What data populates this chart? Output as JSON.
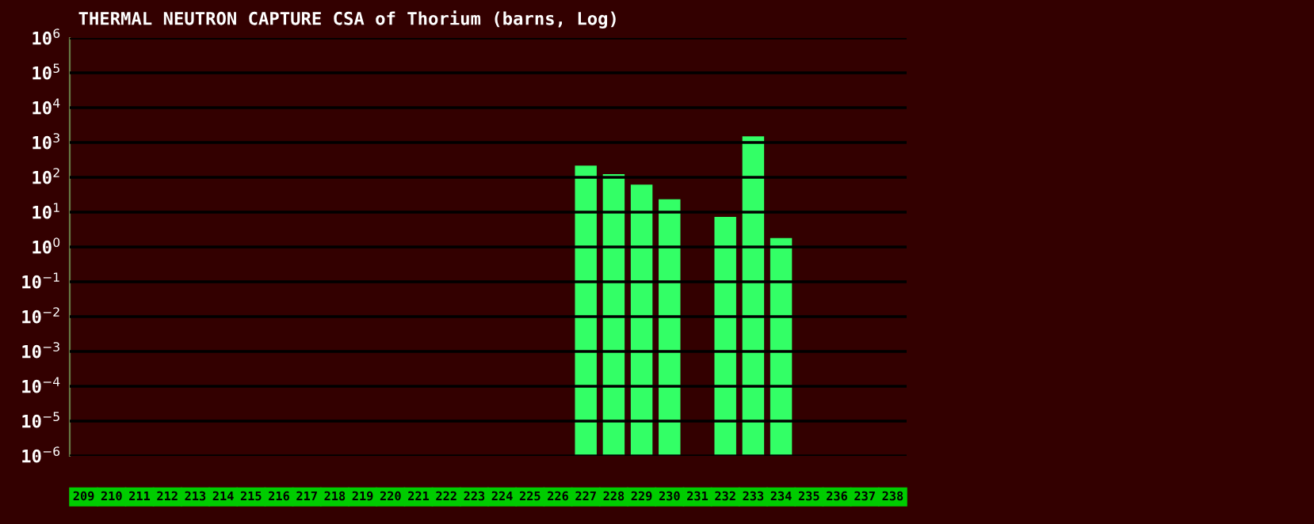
{
  "chart_data": {
    "type": "bar",
    "title": "THERMAL NEUTRON CAPTURE CSA of Thorium (barns, Log)",
    "categories": [
      "209",
      "210",
      "211",
      "212",
      "213",
      "214",
      "215",
      "216",
      "217",
      "218",
      "219",
      "220",
      "221",
      "222",
      "223",
      "224",
      "225",
      "226",
      "227",
      "228",
      "229",
      "230",
      "231",
      "232",
      "233",
      "234",
      "235",
      "236",
      "237",
      "238"
    ],
    "values": [
      null,
      null,
      null,
      null,
      null,
      null,
      null,
      null,
      null,
      null,
      null,
      null,
      null,
      null,
      null,
      null,
      null,
      null,
      215,
      123,
      62,
      23.4,
      null,
      7.3,
      1500,
      1.8,
      null,
      null,
      null,
      null
    ],
    "color": "#33ff66",
    "log": "y",
    "ylim": [
      1e-06,
      1000000.0
    ],
    "yticks": [
      {
        "value": 1e-06,
        "label": "10$^{−6}$"
      },
      {
        "value": 1e-05,
        "label": "10$^{−5}$"
      },
      {
        "value": 0.0001,
        "label": "10$^{−4}$"
      },
      {
        "value": 0.001,
        "label": "10$^{−3}$"
      },
      {
        "value": 0.01,
        "label": "10$^{−2}$"
      },
      {
        "value": 0.1,
        "label": "10$^{−1}$"
      },
      {
        "value": 1,
        "label": "10$^{0}$"
      },
      {
        "value": 10,
        "label": "10$^{1}$"
      },
      {
        "value": 100,
        "label": "10$^{2}$"
      },
      {
        "value": 1000,
        "label": "10$^{3}$"
      },
      {
        "value": 10000,
        "label": "10$^{4}$"
      },
      {
        "value": 100000,
        "label": "10$^{5}$"
      },
      {
        "value": 1000000,
        "label": "10$^{6}$"
      }
    ],
    "grid": "y"
  }
}
